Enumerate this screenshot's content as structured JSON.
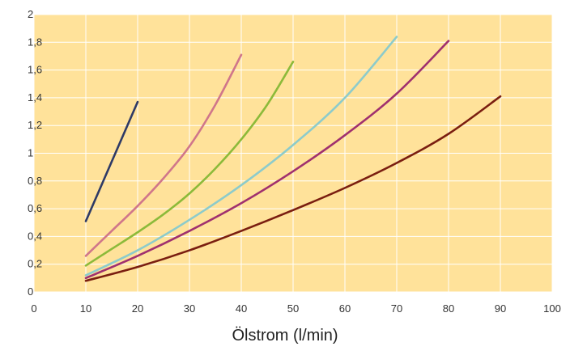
{
  "chart_data": {
    "type": "line",
    "title": "",
    "xlabel": "Ölstrom (l/min)",
    "ylabel": "",
    "xlim": [
      0,
      100
    ],
    "ylim": [
      0,
      2
    ],
    "xticks": [
      0,
      10,
      20,
      30,
      40,
      50,
      60,
      70,
      80,
      90,
      100
    ],
    "yticks": [
      0,
      0.2,
      0.4,
      0.6,
      0.8,
      1,
      1.2,
      1.4,
      1.6,
      1.8,
      2
    ],
    "xtick_labels": [
      "0",
      "10",
      "20",
      "30",
      "40",
      "50",
      "60",
      "70",
      "80",
      "90",
      "100"
    ],
    "ytick_labels": [
      "0",
      "0,2",
      "0,4",
      "0,6",
      "0,8",
      "1",
      "1,2",
      "1,4",
      "1,6",
      "1,8",
      "2"
    ],
    "grid": true,
    "background_color": "#FFE29A",
    "grid_color": "#FFFFFF",
    "series": [
      {
        "color": "#2E3A66",
        "x": [
          10,
          20
        ],
        "y": [
          0.51,
          1.37
        ]
      },
      {
        "color": "#D0768A",
        "x": [
          10,
          15,
          20,
          25,
          30,
          35,
          40
        ],
        "y": [
          0.26,
          0.44,
          0.62,
          0.82,
          1.05,
          1.35,
          1.71
        ]
      },
      {
        "color": "#8CBA3A",
        "x": [
          10,
          15,
          20,
          25,
          30,
          35,
          40,
          45,
          50
        ],
        "y": [
          0.19,
          0.31,
          0.43,
          0.56,
          0.71,
          0.89,
          1.1,
          1.35,
          1.66
        ]
      },
      {
        "color": "#8CCBCB",
        "x": [
          10,
          20,
          30,
          40,
          50,
          60,
          70
        ],
        "y": [
          0.12,
          0.3,
          0.52,
          0.77,
          1.06,
          1.4,
          1.84
        ]
      },
      {
        "color": "#A0306E",
        "x": [
          10,
          20,
          30,
          40,
          50,
          60,
          70,
          80
        ],
        "y": [
          0.1,
          0.26,
          0.44,
          0.64,
          0.87,
          1.13,
          1.43,
          1.81
        ]
      },
      {
        "color": "#7A1E10",
        "x": [
          10,
          20,
          30,
          40,
          50,
          60,
          70,
          80,
          90
        ],
        "y": [
          0.08,
          0.18,
          0.3,
          0.44,
          0.59,
          0.75,
          0.93,
          1.14,
          1.41
        ]
      }
    ]
  }
}
